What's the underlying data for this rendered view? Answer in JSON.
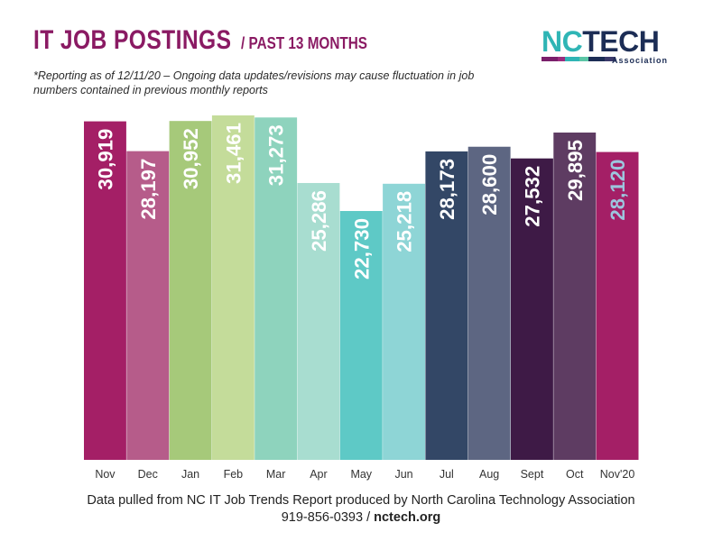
{
  "header": {
    "title": "IT JOB POSTINGS",
    "subtitle": "/ PAST 13 MONTHS",
    "note": "*Reporting as of 12/11/20 – Ongoing data updates/revisions may cause fluctuation in job numbers contained in previous monthly reports"
  },
  "logo": {
    "text_nc": "NC",
    "text_tech": "TECH",
    "tagline": "Association",
    "stripe_colors": [
      "#7a1f6b",
      "#9b2c7e",
      "#2fb5b5",
      "#5cc6a6",
      "#1c2d55",
      "#3b3a6b"
    ]
  },
  "footer": {
    "source": "Data pulled from NC IT Job Trends Report produced by North Carolina Technology Association",
    "phone": "919-856-0393",
    "separator": "/",
    "site": "nctech.org"
  },
  "chart_data": {
    "type": "bar",
    "categories": [
      "Nov",
      "Dec",
      "Jan",
      "Feb",
      "Mar",
      "Apr",
      "May",
      "Jun",
      "Jul",
      "Aug",
      "Sept",
      "Oct",
      "Nov'20"
    ],
    "values": [
      30919,
      28197,
      30952,
      31461,
      31273,
      25286,
      22730,
      25218,
      28173,
      28600,
      27532,
      29895,
      28120
    ],
    "labels": [
      "30,919",
      "28,197",
      "30,952",
      "31,461",
      "31,273",
      "25,286",
      "22,730",
      "25,218",
      "28,173",
      "28,600",
      "27,532",
      "29,895",
      "28,120"
    ],
    "colors": [
      "#a41f66",
      "#b65c8a",
      "#a6c97a",
      "#c4dc9a",
      "#8ed3bd",
      "#a8ddd0",
      "#5ec9c6",
      "#8ed5d6",
      "#334766",
      "#5d6682",
      "#3e1a46",
      "#5e3c62",
      "#a41f66"
    ],
    "label_colors": [
      "#ffffff",
      "#ffffff",
      "#ffffff",
      "#ffffff",
      "#ffffff",
      "#ffffff",
      "#ffffff",
      "#ffffff",
      "#ffffff",
      "#ffffff",
      "#ffffff",
      "#ffffff",
      "#9cc6de"
    ],
    "ylim": [
      0,
      31461
    ],
    "grid": false,
    "legend": "none"
  }
}
